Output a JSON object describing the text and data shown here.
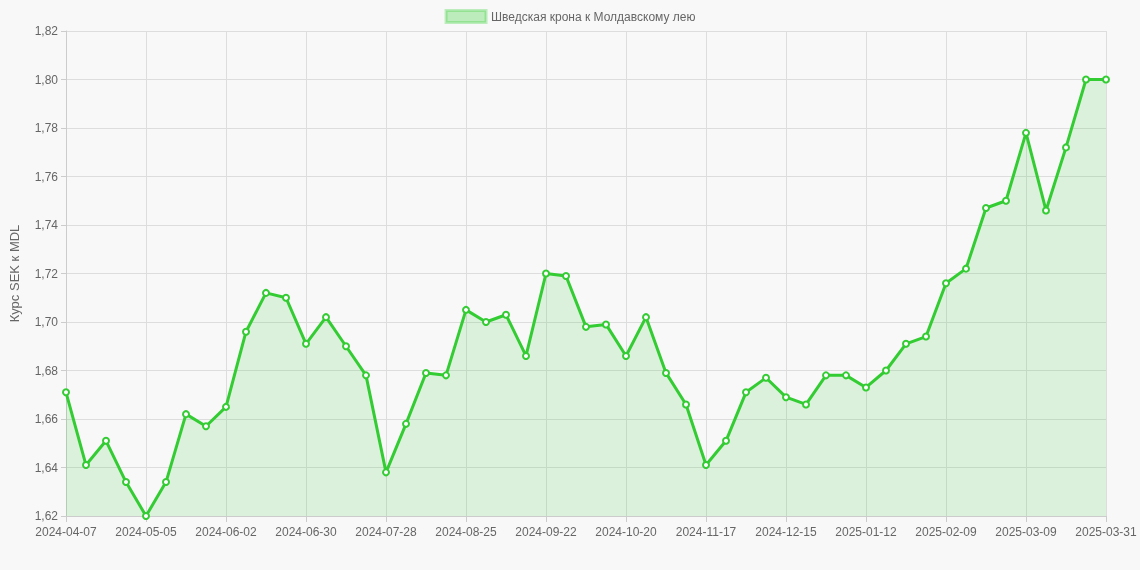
{
  "chart_data": {
    "type": "area",
    "ylabel": "Курс SEK к MDL",
    "categories": [
      "2024-04-07",
      null,
      null,
      null,
      "2024-05-05",
      null,
      null,
      null,
      "2024-06-02",
      null,
      null,
      null,
      "2024-06-30",
      null,
      null,
      null,
      "2024-07-28",
      null,
      null,
      null,
      "2024-08-25",
      null,
      null,
      null,
      "2024-09-22",
      null,
      null,
      null,
      "2024-10-20",
      null,
      null,
      null,
      "2024-11-17",
      null,
      null,
      null,
      "2024-12-15",
      null,
      null,
      null,
      "2025-01-12",
      null,
      null,
      null,
      "2025-02-09",
      null,
      null,
      null,
      "2025-03-09",
      null,
      null,
      null,
      "2025-03-31"
    ],
    "series": [
      {
        "name": "Шведская крона к Молдавскому лею",
        "color": "#33cc33",
        "values": [
          1.671,
          1.641,
          1.651,
          1.634,
          1.62,
          1.634,
          1.662,
          1.657,
          1.665,
          1.696,
          1.712,
          1.71,
          1.691,
          1.702,
          1.69,
          1.678,
          1.638,
          1.658,
          1.679,
          1.678,
          1.705,
          1.7,
          1.703,
          1.686,
          1.72,
          1.719,
          1.698,
          1.699,
          1.686,
          1.702,
          1.679,
          1.666,
          1.641,
          1.651,
          1.671,
          1.677,
          1.669,
          1.666,
          1.678,
          1.678,
          1.673,
          1.68,
          1.691,
          1.694,
          1.716,
          1.722,
          1.747,
          1.75,
          1.778,
          1.746,
          1.772,
          1.8,
          1.8
        ]
      }
    ],
    "ylim": [
      1.62,
      1.82
    ],
    "yticks": [
      {
        "value": 1.62,
        "label": "1,62"
      },
      {
        "value": 1.64,
        "label": "1,64"
      },
      {
        "value": 1.66,
        "label": "1,66"
      },
      {
        "value": 1.68,
        "label": "1,68"
      },
      {
        "value": 1.7,
        "label": "1,70"
      },
      {
        "value": 1.72,
        "label": "1,72"
      },
      {
        "value": 1.74,
        "label": "1,74"
      },
      {
        "value": 1.76,
        "label": "1,76"
      },
      {
        "value": 1.78,
        "label": "1,78"
      },
      {
        "value": 1.8,
        "label": "1,80"
      },
      {
        "value": 1.82,
        "label": "1,82"
      }
    ],
    "grid": true,
    "legend": "top",
    "marker": "circle",
    "line_style": "solid"
  }
}
